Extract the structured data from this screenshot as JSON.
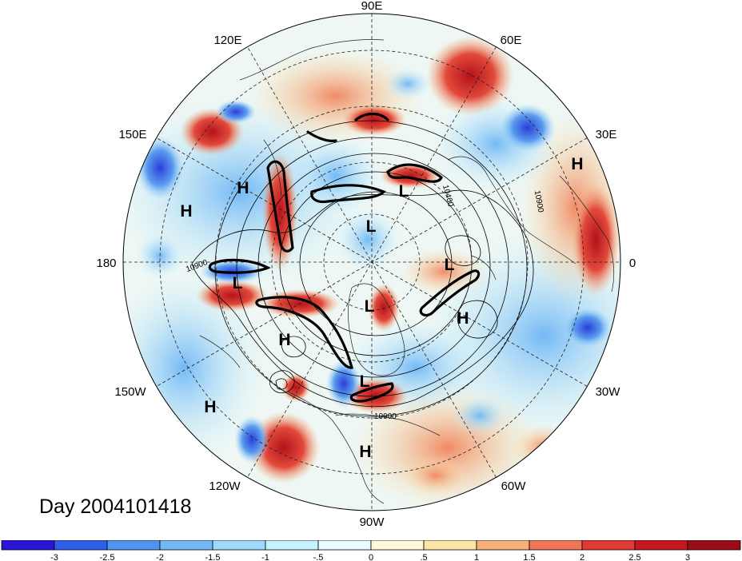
{
  "title": "Day 2004101418",
  "longitude_labels": [
    "90E",
    "60E",
    "30E",
    "0",
    "30W",
    "60W",
    "90W",
    "120W",
    "150W",
    "180",
    "150E",
    "120E"
  ],
  "contour_labels": [
    "10900",
    "10900",
    "10900",
    "10400"
  ],
  "pressure_centers": {
    "highs": [
      "H",
      "H",
      "H",
      "H",
      "H",
      "H",
      "H"
    ],
    "lows": [
      "L",
      "L",
      "L",
      "L",
      "L",
      "L"
    ]
  },
  "colorbar": {
    "tick_labels": [
      "-3",
      "-2.5",
      "-2",
      "-1.5",
      "-1",
      "-.5",
      "0",
      ".5",
      "1",
      "1.5",
      "2",
      "2.5",
      "3"
    ],
    "colors": [
      "#2b15d8",
      "#2f5fe6",
      "#4f95ef",
      "#74b9f4",
      "#9fd8fb",
      "#c8f1fe",
      "#e8fbff",
      "#fff9dc",
      "#fce4a8",
      "#f7b07a",
      "#ef7659",
      "#e03a35",
      "#c41721",
      "#9b0d16"
    ]
  },
  "projection": "north polar stereographic"
}
